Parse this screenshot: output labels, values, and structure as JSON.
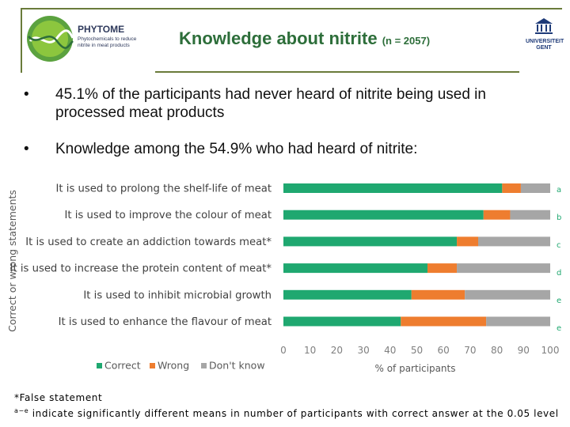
{
  "header": {
    "brand_name": "PHYTOME",
    "brand_tagline": "Phytochemicals to reduce nitrite in meat products",
    "title": "Knowledge about nitrite",
    "title_suffix": "(n = 2057)",
    "university_name": "UNIVERSITEIT GENT"
  },
  "bullets": [
    "45.1% of the participants had never heard of nitrite being used in processed meat products",
    "Knowledge among the 54.9% who had heard of nitrite:"
  ],
  "chart_data": {
    "type": "bar",
    "orientation": "horizontal",
    "stacked": true,
    "categories": [
      "It is used to prolong the shelf-life of meat",
      "It is used to improve the colour of meat",
      "It is used to create an addiction towards meat*",
      "It is used to increase the protein content of meat*",
      "It is used to inhibit microbial growth",
      "It is used to enhance the flavour of meat"
    ],
    "series": [
      {
        "name": "Correct",
        "values": [
          82,
          75,
          65,
          54,
          48,
          44
        ],
        "color": "#1fa870"
      },
      {
        "name": "Wrong",
        "values": [
          7,
          10,
          8,
          11,
          20,
          32
        ],
        "color": "#ee7d2f"
      },
      {
        "name": "Don't know",
        "values": [
          11,
          15,
          27,
          35,
          32,
          24
        ],
        "color": "#a6a6a6"
      }
    ],
    "significance_letters": [
      "a",
      "b",
      "c",
      "d",
      "e",
      "e"
    ],
    "xlabel": "% of participants",
    "ylabel": "Correct or wrong statements",
    "xlim": [
      0,
      100
    ],
    "xticks": [
      0,
      10,
      20,
      30,
      40,
      50,
      60,
      70,
      80,
      90,
      100
    ],
    "legend_position": "bottom-left"
  },
  "footnotes": {
    "false_statement": "*False statement",
    "significance_prefix": "a−e",
    "significance_text": " indicate significantly different means in number of participants with correct answer at the 0.05 level"
  }
}
